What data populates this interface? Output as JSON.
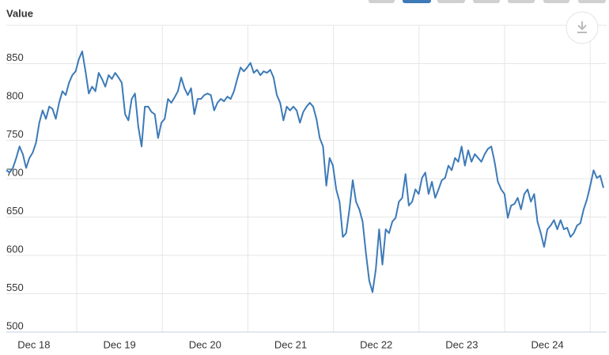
{
  "chart_data": {
    "type": "line",
    "y_label": "Value",
    "color": "#3d7ab8",
    "x_tick_labels": [
      "Dec 18",
      "Dec 19",
      "Dec 20",
      "Dec 21",
      "Dec 22",
      "Dec 23",
      "Dec 24"
    ],
    "ylim": [
      500,
      900
    ],
    "yticks": [
      500,
      550,
      600,
      650,
      700,
      750,
      800,
      850
    ],
    "grid": true,
    "values": [
      711,
      708,
      714,
      727,
      742,
      732,
      714,
      727,
      734,
      747,
      773,
      789,
      778,
      794,
      791,
      778,
      799,
      814,
      809,
      825,
      835,
      840,
      856,
      866,
      840,
      811,
      820,
      814,
      838,
      830,
      820,
      835,
      830,
      838,
      832,
      825,
      784,
      776,
      804,
      811,
      768,
      742,
      794,
      794,
      787,
      784,
      753,
      773,
      778,
      804,
      799,
      806,
      814,
      832,
      818,
      809,
      818,
      784,
      804,
      804,
      809,
      811,
      809,
      789,
      799,
      804,
      801,
      807,
      804,
      814,
      830,
      845,
      840,
      845,
      851,
      838,
      842,
      835,
      840,
      838,
      842,
      832,
      809,
      799,
      776,
      794,
      789,
      794,
      789,
      773,
      787,
      794,
      799,
      794,
      778,
      753,
      742,
      691,
      727,
      717,
      686,
      670,
      624,
      629,
      660,
      698,
      670,
      660,
      644,
      603,
      567,
      552,
      582,
      634,
      588,
      634,
      629,
      644,
      649,
      670,
      675,
      706,
      665,
      670,
      686,
      680,
      701,
      708,
      680,
      696,
      675,
      686,
      698,
      701,
      717,
      711,
      727,
      722,
      742,
      717,
      737,
      722,
      732,
      727,
      722,
      732,
      739,
      742,
      722,
      696,
      686,
      680,
      649,
      665,
      667,
      675,
      660,
      680,
      686,
      670,
      680,
      644,
      629,
      611,
      634,
      639,
      646,
      634,
      646,
      634,
      636,
      624,
      629,
      639,
      642,
      660,
      673,
      691,
      711,
      701,
      704,
      688
    ]
  }
}
